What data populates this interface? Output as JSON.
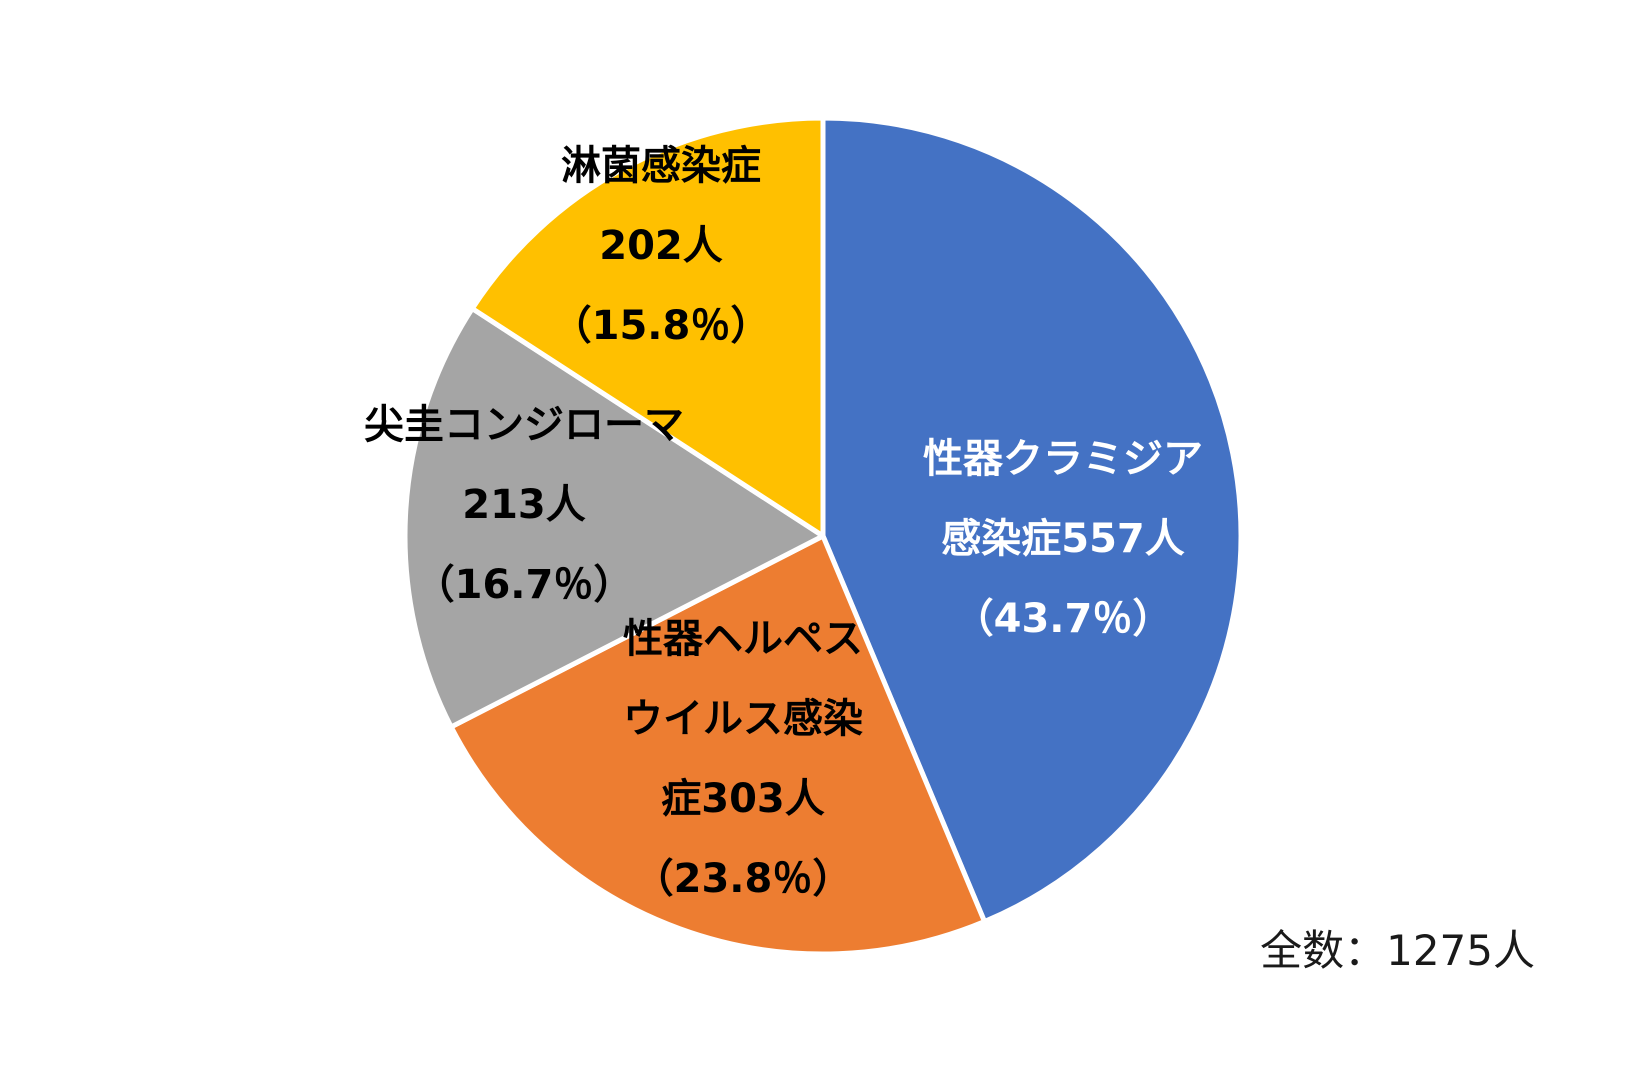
{
  "chart_data": {
    "type": "pie",
    "total_label": "全数：1275人",
    "slices": [
      {
        "name": "性器クラミジア感染症",
        "value": 557,
        "percent": 43.7,
        "color": "#4472C4",
        "text_color": "#FFFFFF",
        "label_lines": [
          "性器クラミジア",
          "感染症557人",
          "（43.7％）"
        ]
      },
      {
        "name": "性器ヘルペスウイルス感染症",
        "value": 303,
        "percent": 23.8,
        "color": "#ED7D31",
        "text_color": "#000000",
        "label_lines": [
          "性器ヘルペス",
          "ウイルス感染",
          "症303人",
          "（23.8％）"
        ]
      },
      {
        "name": "尖圭コンジローマ",
        "value": 213,
        "percent": 16.7,
        "color": "#A5A5A5",
        "text_color": "#000000",
        "label_lines": [
          "尖圭コンジローマ",
          "213人",
          "（16.7％）"
        ]
      },
      {
        "name": "淋菌感染症",
        "value": 202,
        "percent": 15.8,
        "color": "#FFC000",
        "text_color": "#000000",
        "label_lines": [
          "淋菌感染症",
          "202人",
          "（15.8％）"
        ]
      }
    ]
  }
}
